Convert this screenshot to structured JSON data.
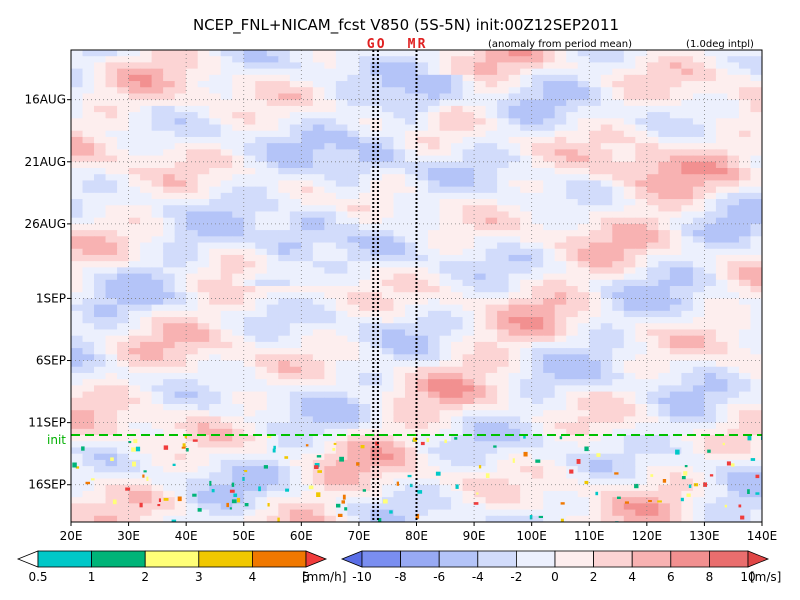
{
  "chart_data": {
    "type": "heatmap",
    "title": "NCEP_FNL+NICAM_fcst V850 (5S-5N) init:00Z12SEP2011",
    "subtitle_left": "(anomaly from period mean)",
    "subtitle_right": "(1.0deg intpl)",
    "xlim": [
      20,
      140
    ],
    "x_ticks": [
      20,
      30,
      40,
      50,
      60,
      70,
      80,
      90,
      100,
      110,
      120,
      130,
      140
    ],
    "x_tick_labels": [
      "20E",
      "30E",
      "40E",
      "50E",
      "60E",
      "70E",
      "80E",
      "90E",
      "100E",
      "110E",
      "120E",
      "130E",
      "140E"
    ],
    "ylim": [
      "2011-08-12",
      "2011-09-19"
    ],
    "y_ticks": [
      "2011-08-16",
      "2011-08-21",
      "2011-08-26",
      "2011-09-01",
      "2011-09-06",
      "2011-09-11",
      "2011-09-16"
    ],
    "y_tick_labels": [
      "16AUG",
      "21AUG",
      "26AUG",
      "1SEP",
      "6SEP",
      "11SEP",
      "16SEP"
    ],
    "init_date": "2011-09-12",
    "init_label": "init",
    "grid": true,
    "markers": [
      {
        "label": "G",
        "lon": 72.5
      },
      {
        "label": "O",
        "lon": 73.3
      },
      {
        "label": "M",
        "lon": 80
      },
      {
        "label": "R",
        "lon": 80
      }
    ],
    "field_pattern": {
      "negative_band": {
        "from_date": "2011-08-16",
        "from_lon": 83,
        "to_date": "2011-08-29",
        "to_lon": 55
      },
      "value_range": [
        -6,
        6
      ]
    },
    "precip_colorbar": {
      "unit": "[mm/h]",
      "levels": [
        0.5,
        1,
        2,
        3,
        4,
        5
      ],
      "colors": [
        "#ffffff",
        "#00c8c8",
        "#00b478",
        "#ffff78",
        "#f0c800",
        "#f07800",
        "#f03c3c"
      ]
    },
    "wind_colorbar": {
      "unit": "[m/s]",
      "levels": [
        -10,
        -8,
        -6,
        -4,
        -2,
        0,
        2,
        4,
        6,
        8,
        10
      ],
      "colors": [
        "#5a6ee6",
        "#7a8ef0",
        "#98aaf4",
        "#b4c4f8",
        "#d2dcfb",
        "#ecf0fd",
        "#fdeeee",
        "#fcd4d4",
        "#f8b2b2",
        "#f29090",
        "#ea6e6e",
        "#e04646"
      ]
    }
  }
}
